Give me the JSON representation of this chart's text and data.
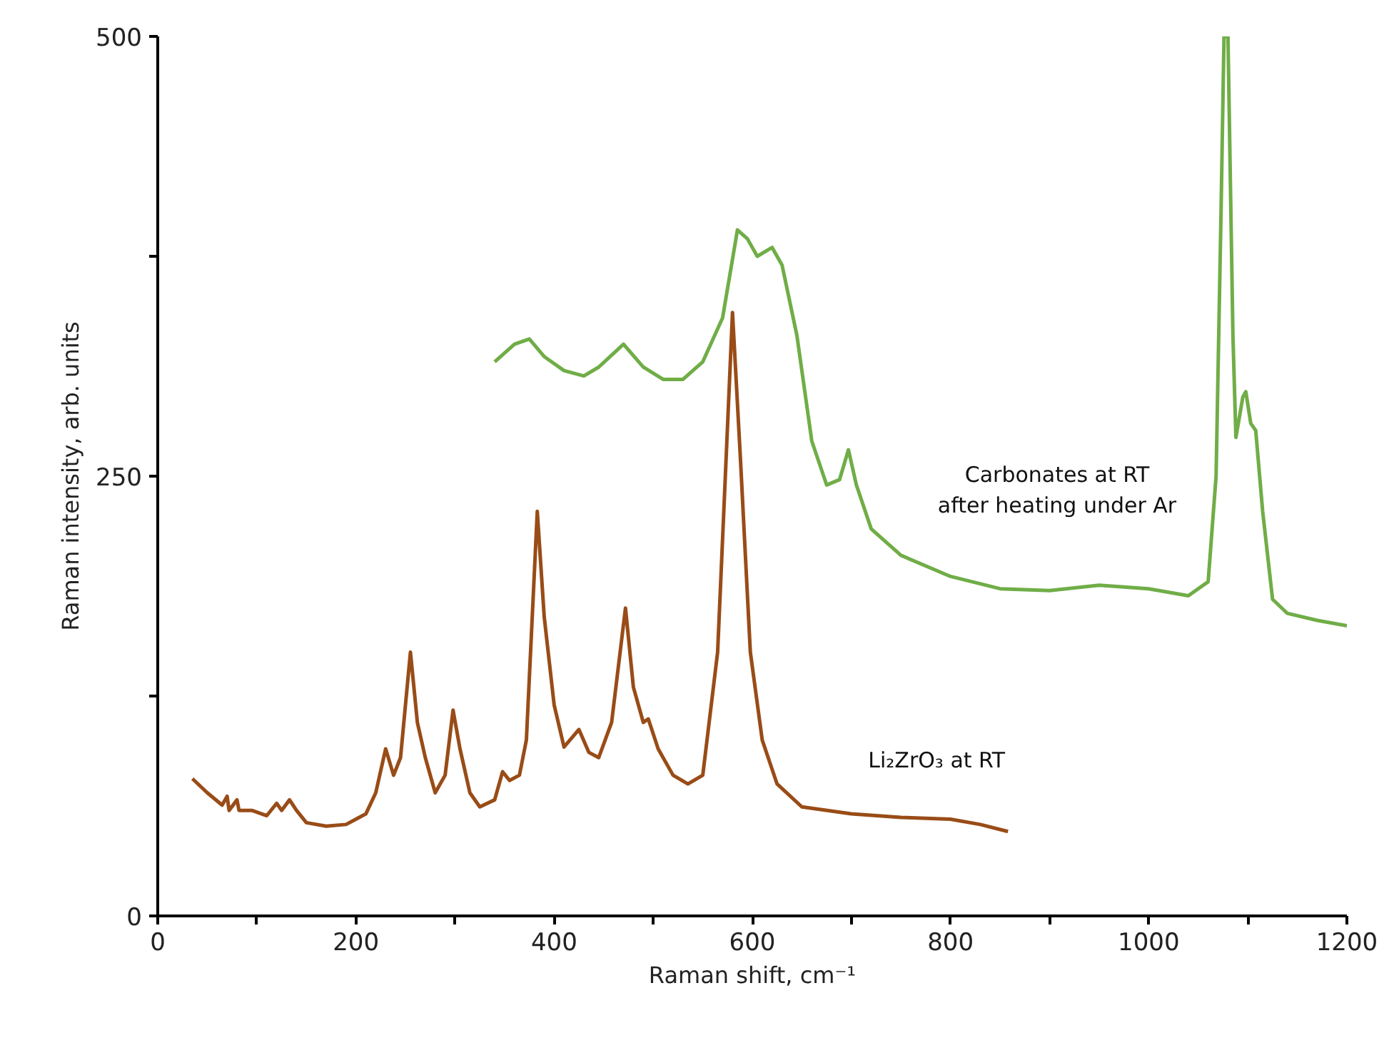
{
  "chart_data": {
    "type": "line",
    "xlabel": "Raman shift, cm⁻¹",
    "ylabel": "Raman intensity, arb. units",
    "xlim": [
      0,
      1200
    ],
    "ylim": [
      0,
      500
    ],
    "xticks": [
      0,
      {
        "value": 100,
        "label": null
      },
      200,
      {
        "value": 300,
        "label": null
      },
      400,
      {
        "value": 500,
        "label": null
      },
      600,
      {
        "value": 700,
        "label": null
      },
      800,
      {
        "value": 900,
        "label": null
      },
      1000,
      {
        "value": 1100,
        "label": null
      },
      1200
    ],
    "yticks": [
      0,
      {
        "value": 125,
        "label": null
      },
      250,
      {
        "value": 375,
        "label": null
      },
      500
    ],
    "grid": false,
    "marker": "none",
    "line_style": "solid",
    "series": [
      {
        "name": "Li₂ZrO₃ at RT",
        "color": "#994c17",
        "x": [
          35,
          50,
          65,
          70,
          72,
          80,
          82,
          95,
          110,
          120,
          125,
          133,
          140,
          150,
          170,
          190,
          200,
          210,
          220,
          230,
          238,
          245,
          255,
          262,
          270,
          280,
          290,
          298,
          305,
          315,
          325,
          340,
          348,
          355,
          365,
          372,
          383,
          390,
          400,
          410,
          425,
          435,
          445,
          458,
          472,
          480,
          490,
          495,
          505,
          520,
          535,
          550,
          565,
          572,
          580,
          588,
          598,
          610,
          625,
          650,
          700,
          750,
          800,
          830,
          858
        ],
        "values": [
          78,
          70,
          63,
          68,
          60,
          66,
          60,
          60,
          57,
          64,
          60,
          66,
          60,
          53,
          51,
          52,
          55,
          58,
          70,
          95,
          80,
          90,
          150,
          110,
          90,
          70,
          80,
          117,
          95,
          70,
          62,
          66,
          82,
          77,
          80,
          100,
          230,
          170,
          120,
          96,
          106,
          93,
          90,
          110,
          175,
          130,
          110,
          112,
          95,
          80,
          75,
          80,
          150,
          240,
          343,
          260,
          150,
          100,
          75,
          62,
          58,
          56,
          55,
          52,
          48
        ]
      },
      {
        "name": "Carbonates at RT\nafter heating under Ar",
        "color": "#70ad47",
        "x": [
          340,
          360,
          375,
          390,
          410,
          430,
          445,
          470,
          490,
          510,
          530,
          550,
          570,
          585,
          595,
          605,
          620,
          630,
          645,
          660,
          675,
          688,
          697,
          705,
          720,
          750,
          800,
          850,
          900,
          950,
          1000,
          1040,
          1060,
          1068,
          1073,
          1076,
          1080,
          1085,
          1088,
          1095,
          1098,
          1103,
          1108,
          1115,
          1125,
          1140,
          1170,
          1200
        ],
        "values": [
          315,
          325,
          328,
          318,
          310,
          307,
          312,
          325,
          312,
          305,
          305,
          315,
          340,
          390,
          385,
          375,
          380,
          370,
          330,
          270,
          245,
          248,
          265,
          245,
          220,
          205,
          193,
          186,
          185,
          188,
          186,
          182,
          190,
          250,
          400,
          500,
          500,
          330,
          272,
          295,
          298,
          280,
          276,
          230,
          180,
          172,
          168,
          165
        ]
      }
    ]
  }
}
